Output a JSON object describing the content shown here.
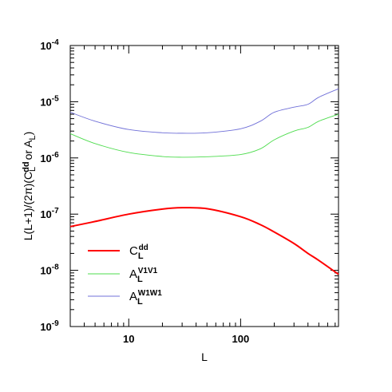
{
  "chart_data": {
    "type": "line",
    "xlabel": "L",
    "ylabel": "L(L+1)/(2π)(C_L^dd or A_L)",
    "ylabel_parts": {
      "prefix": "L(L+1)/(2π)(C",
      "sub": "L",
      "sup": "dd",
      "middle": "or A",
      "sub2": "L",
      "suffix": ")"
    },
    "xscale": "log",
    "yscale": "log",
    "xlim": [
      3,
      750
    ],
    "ylim": [
      1e-09,
      0.0001
    ],
    "x_ticks": [
      {
        "value": 10,
        "label": "10"
      },
      {
        "value": 100,
        "label": "100"
      }
    ],
    "y_ticks": [
      {
        "value": 1e-09,
        "base": "10",
        "exp": "-9"
      },
      {
        "value": 1e-08,
        "base": "10",
        "exp": "-8"
      },
      {
        "value": 1e-07,
        "base": "10",
        "exp": "-7"
      },
      {
        "value": 1e-06,
        "base": "10",
        "exp": "-6"
      },
      {
        "value": 1e-05,
        "base": "10",
        "exp": "-5"
      },
      {
        "value": 0.0001,
        "base": "10",
        "exp": "-4"
      }
    ],
    "grid": false,
    "legend_position": "lower-left",
    "x": [
      3,
      5,
      10,
      20,
      30,
      50,
      100,
      150,
      200,
      300,
      400,
      500,
      750
    ],
    "series": [
      {
        "base": "C",
        "sub": "L",
        "sup": "dd",
        "color": "#ff0000",
        "values": [
          6e-08,
          7.4e-08,
          1e-07,
          1.23e-07,
          1.3e-07,
          1.25e-07,
          9e-08,
          6.5e-08,
          4.8e-08,
          3e-08,
          2e-08,
          1.5e-08,
          8.5e-09
        ]
      },
      {
        "base": "A",
        "sub": "L",
        "sup": "V1V1",
        "color": "#4ddc4d",
        "values": [
          2.7e-06,
          1.8e-06,
          1.25e-06,
          1.06e-06,
          1.03e-06,
          1.05e-06,
          1.15e-06,
          1.45e-06,
          2.1e-06,
          3e-06,
          3.5e-06,
          4.5e-06,
          6e-06
        ]
      },
      {
        "base": "A",
        "sub": "L",
        "sup": "W1W1",
        "color": "#7070d8",
        "values": [
          6.5e-06,
          4.5e-06,
          3.2e-06,
          2.8e-06,
          2.75e-06,
          2.8e-06,
          3.3e-06,
          4.5e-06,
          6.5e-06,
          8e-06,
          9e-06,
          1.2e-05,
          1.7e-05
        ]
      }
    ]
  }
}
